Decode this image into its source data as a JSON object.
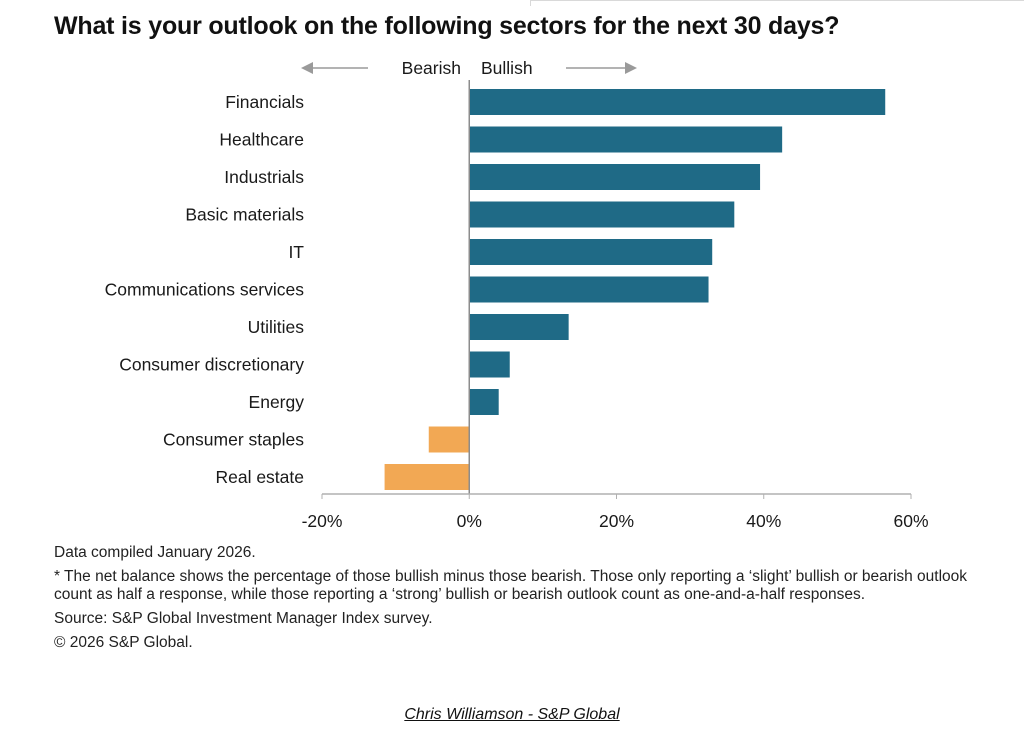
{
  "chart_data": {
    "type": "bar",
    "orientation": "horizontal",
    "title": "What is your outlook on the following sectors for the next 30 days?",
    "direction_labels": {
      "left": "Bearish",
      "right": "Bullish"
    },
    "categories": [
      "Financials",
      "Healthcare",
      "Industrials",
      "Basic materials",
      "IT",
      "Communications services",
      "Utilities",
      "Consumer discretionary",
      "Energy",
      "Consumer staples",
      "Real estate"
    ],
    "values": [
      56.5,
      42.5,
      39.5,
      36,
      33,
      32.5,
      13.5,
      5.5,
      4,
      -5.5,
      -11.5
    ],
    "xlim": [
      -20,
      60
    ],
    "xticks": [
      -20,
      0,
      20,
      40,
      60
    ],
    "xtick_labels": [
      "-20%",
      "0%",
      "20%",
      "40%",
      "60%"
    ],
    "colors": {
      "positive": "#1f6a86",
      "negative": "#f2a854",
      "axis": "#b0b0b0",
      "zero_line": "#8c8c8c"
    }
  },
  "notes": {
    "compiled": "Data compiled January 2026.",
    "footnote": "* The net balance shows the percentage of those bullish minus those bearish. Those only reporting a ‘slight’ bullish or bearish outlook count as half a response, while those reporting a ‘strong’ bullish or bearish outlook count as one-and-a-half responses.",
    "source": "Source: S&P Global Investment Manager Index survey.",
    "copyright": "© 2026 S&P Global."
  },
  "credit": "Chris Williamson - S&P Global"
}
